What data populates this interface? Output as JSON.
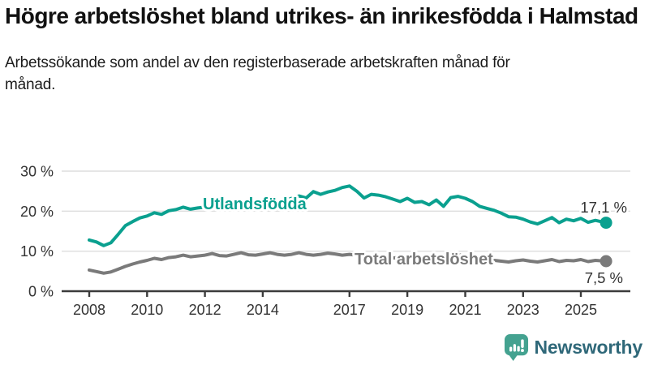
{
  "header": {
    "title": "Högre arbetslöshet bland utrikes- än inrikesfödda i Halmstad",
    "subtitle": "Arbetssökande som andel av den registerbaserade arbetskraften månad för månad."
  },
  "chart_data": {
    "type": "line",
    "title": "Högre arbetslöshet bland utrikes- än inrikesfödda i Halmstad",
    "subtitle": "Arbetssökande som andel av den registerbaserade arbetskraften månad för månad.",
    "xlim": [
      2008,
      2026.2
    ],
    "ylim": [
      0,
      30
    ],
    "grid": "horizontal",
    "x_axis": {
      "tick_years": [
        2008,
        2010,
        2012,
        2014,
        2017,
        2019,
        2021,
        2023,
        2025
      ],
      "tick_labels": [
        "2008",
        "2010",
        "2012",
        "2014",
        "2017",
        "2019",
        "2021",
        "2023",
        "2025"
      ]
    },
    "y_axis": {
      "tick_values": [
        0,
        10,
        20,
        30
      ],
      "tick_labels": [
        "0 %",
        "10 %",
        "20 %",
        "30 %"
      ]
    },
    "series": [
      {
        "name": "Utlandsfödda",
        "color": "#0AA08F",
        "end_label": "17,1 %",
        "end_value": 17.1,
        "points": [
          [
            2008.0,
            12.8
          ],
          [
            2008.25,
            12.3
          ],
          [
            2008.5,
            11.4
          ],
          [
            2008.75,
            12.1
          ],
          [
            2009.0,
            14.2
          ],
          [
            2009.25,
            16.4
          ],
          [
            2009.5,
            17.4
          ],
          [
            2009.75,
            18.3
          ],
          [
            2010.0,
            18.8
          ],
          [
            2010.25,
            19.6
          ],
          [
            2010.5,
            19.2
          ],
          [
            2010.75,
            20.1
          ],
          [
            2011.0,
            20.4
          ],
          [
            2011.25,
            21.0
          ],
          [
            2011.5,
            20.5
          ],
          [
            2011.75,
            20.8
          ],
          [
            2012.0,
            21.0
          ],
          [
            2012.25,
            21.3
          ],
          [
            2012.5,
            20.8
          ],
          [
            2012.75,
            21.1
          ],
          [
            2013.0,
            21.6
          ],
          [
            2013.25,
            22.1
          ],
          [
            2013.5,
            21.4
          ],
          [
            2013.75,
            21.8
          ],
          [
            2014.0,
            22.0
          ],
          [
            2014.25,
            22.4
          ],
          [
            2014.5,
            21.8
          ],
          [
            2014.75,
            22.6
          ],
          [
            2015.0,
            23.2
          ],
          [
            2015.25,
            23.8
          ],
          [
            2015.5,
            23.3
          ],
          [
            2015.75,
            24.9
          ],
          [
            2016.0,
            24.2
          ],
          [
            2016.25,
            24.8
          ],
          [
            2016.5,
            25.2
          ],
          [
            2016.75,
            25.9
          ],
          [
            2017.0,
            26.3
          ],
          [
            2017.25,
            25.0
          ],
          [
            2017.5,
            23.3
          ],
          [
            2017.75,
            24.2
          ],
          [
            2018.0,
            24.0
          ],
          [
            2018.25,
            23.6
          ],
          [
            2018.5,
            23.0
          ],
          [
            2018.75,
            22.4
          ],
          [
            2019.0,
            23.2
          ],
          [
            2019.25,
            22.2
          ],
          [
            2019.5,
            22.4
          ],
          [
            2019.75,
            21.6
          ],
          [
            2020.0,
            22.8
          ],
          [
            2020.25,
            21.2
          ],
          [
            2020.5,
            23.4
          ],
          [
            2020.75,
            23.7
          ],
          [
            2021.0,
            23.2
          ],
          [
            2021.25,
            22.4
          ],
          [
            2021.5,
            21.2
          ],
          [
            2021.75,
            20.7
          ],
          [
            2022.0,
            20.2
          ],
          [
            2022.25,
            19.5
          ],
          [
            2022.5,
            18.6
          ],
          [
            2022.75,
            18.5
          ],
          [
            2023.0,
            18.0
          ],
          [
            2023.25,
            17.3
          ],
          [
            2023.5,
            16.8
          ],
          [
            2023.75,
            17.6
          ],
          [
            2024.0,
            18.4
          ],
          [
            2024.25,
            17.1
          ],
          [
            2024.5,
            18.0
          ],
          [
            2024.75,
            17.6
          ],
          [
            2025.0,
            18.2
          ],
          [
            2025.25,
            17.2
          ],
          [
            2025.5,
            17.7
          ],
          [
            2025.75,
            17.3
          ],
          [
            2025.87,
            17.1
          ]
        ]
      },
      {
        "name": "Total arbetslöshet",
        "color": "#7A7A7A",
        "end_label": "7,5 %",
        "end_value": 7.5,
        "points": [
          [
            2008.0,
            5.3
          ],
          [
            2008.25,
            4.9
          ],
          [
            2008.5,
            4.5
          ],
          [
            2008.75,
            4.8
          ],
          [
            2009.0,
            5.5
          ],
          [
            2009.25,
            6.2
          ],
          [
            2009.5,
            6.8
          ],
          [
            2009.75,
            7.3
          ],
          [
            2010.0,
            7.7
          ],
          [
            2010.25,
            8.2
          ],
          [
            2010.5,
            7.9
          ],
          [
            2010.75,
            8.4
          ],
          [
            2011.0,
            8.6
          ],
          [
            2011.25,
            9.0
          ],
          [
            2011.5,
            8.6
          ],
          [
            2011.75,
            8.8
          ],
          [
            2012.0,
            9.0
          ],
          [
            2012.25,
            9.4
          ],
          [
            2012.5,
            8.9
          ],
          [
            2012.75,
            8.8
          ],
          [
            2013.0,
            9.2
          ],
          [
            2013.25,
            9.6
          ],
          [
            2013.5,
            9.1
          ],
          [
            2013.75,
            9.0
          ],
          [
            2014.0,
            9.3
          ],
          [
            2014.25,
            9.6
          ],
          [
            2014.5,
            9.2
          ],
          [
            2014.75,
            9.0
          ],
          [
            2015.0,
            9.2
          ],
          [
            2015.25,
            9.6
          ],
          [
            2015.5,
            9.2
          ],
          [
            2015.75,
            9.0
          ],
          [
            2016.0,
            9.2
          ],
          [
            2016.25,
            9.5
          ],
          [
            2016.5,
            9.3
          ],
          [
            2016.75,
            9.0
          ],
          [
            2017.0,
            9.2
          ],
          [
            2017.25,
            9.0
          ],
          [
            2017.5,
            8.6
          ],
          [
            2017.75,
            8.8
          ],
          [
            2018.0,
            8.9
          ],
          [
            2018.25,
            8.6
          ],
          [
            2018.5,
            8.3
          ],
          [
            2018.75,
            8.5
          ],
          [
            2019.0,
            8.7
          ],
          [
            2019.25,
            8.4
          ],
          [
            2019.5,
            8.2
          ],
          [
            2019.75,
            8.4
          ],
          [
            2020.0,
            8.6
          ],
          [
            2020.25,
            8.9
          ],
          [
            2020.5,
            9.4
          ],
          [
            2020.75,
            9.1
          ],
          [
            2021.0,
            8.9
          ],
          [
            2021.25,
            8.5
          ],
          [
            2021.5,
            8.1
          ],
          [
            2021.75,
            7.9
          ],
          [
            2022.0,
            7.7
          ],
          [
            2022.25,
            7.5
          ],
          [
            2022.5,
            7.3
          ],
          [
            2022.75,
            7.6
          ],
          [
            2023.0,
            7.8
          ],
          [
            2023.25,
            7.5
          ],
          [
            2023.5,
            7.3
          ],
          [
            2023.75,
            7.6
          ],
          [
            2024.0,
            7.9
          ],
          [
            2024.25,
            7.4
          ],
          [
            2024.5,
            7.7
          ],
          [
            2024.75,
            7.6
          ],
          [
            2025.0,
            7.9
          ],
          [
            2025.25,
            7.4
          ],
          [
            2025.5,
            7.7
          ],
          [
            2025.87,
            7.5
          ]
        ]
      }
    ],
    "colors": {
      "grid": "#DEDEDE",
      "axis": "#3C3C3C",
      "tick_text": "#333333",
      "annotation_text": "#333333"
    }
  },
  "footer": {
    "brand": "Newsworthy"
  }
}
